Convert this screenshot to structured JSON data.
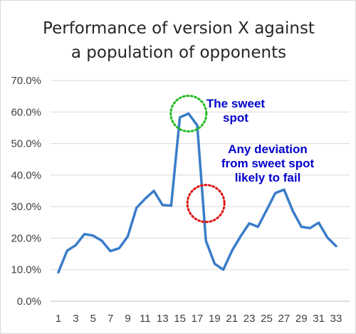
{
  "chart_data": {
    "type": "line",
    "title": [
      "Performance of version X against",
      "a population of opponents"
    ],
    "xlabel": "",
    "ylabel": "",
    "x_tick_labels": [
      "1",
      "3",
      "5",
      "7",
      "9",
      "11",
      "13",
      "15",
      "17",
      "19",
      "21",
      "23",
      "25",
      "27",
      "29",
      "31",
      "33"
    ],
    "y_tick_labels": [
      "0.0%",
      "10.0%",
      "20.0%",
      "30.0%",
      "40.0%",
      "50.0%",
      "60.0%",
      "70.0%"
    ],
    "ylim": [
      0,
      70
    ],
    "xlim": [
      1,
      33
    ],
    "grid": true,
    "legend": "none",
    "series": [
      {
        "color": "#3a7dc9",
        "x": [
          1,
          2,
          3,
          4,
          5,
          6,
          7,
          8,
          9,
          10,
          11,
          12,
          13,
          14,
          15,
          16,
          17,
          18,
          19,
          20,
          21,
          22,
          23,
          24,
          25,
          26,
          27,
          28,
          29,
          30,
          31,
          32,
          33
        ],
        "values": [
          9.2,
          16.0,
          17.8,
          21.3,
          20.8,
          19.2,
          15.9,
          16.8,
          20.6,
          29.6,
          32.5,
          35.0,
          30.5,
          30.3,
          58.3,
          59.5,
          55.8,
          19.2,
          11.9,
          10.0,
          16.0,
          20.6,
          24.7,
          23.6,
          28.9,
          34.3,
          35.4,
          28.7,
          23.6,
          23.2,
          24.9,
          20.2,
          17.5
        ]
      }
    ],
    "annotations": [
      {
        "lines": [
          "The sweet",
          "spot"
        ],
        "color": "#0000cc",
        "circle_color": "#22bb22",
        "circle_center": [
          16.0,
          59.5
        ]
      },
      {
        "lines": [
          "Any deviation",
          "from sweet spot",
          "likely to fail"
        ],
        "color": "#0000cc",
        "circle_color": "#dd1111",
        "circle_center": [
          18.0,
          31.0
        ]
      }
    ],
    "colors": {
      "line": "#3a7dc9",
      "grid": "#d9d9d9",
      "axis": "#bfbfbf",
      "tick_text": "#404040",
      "title": "#262626"
    }
  }
}
